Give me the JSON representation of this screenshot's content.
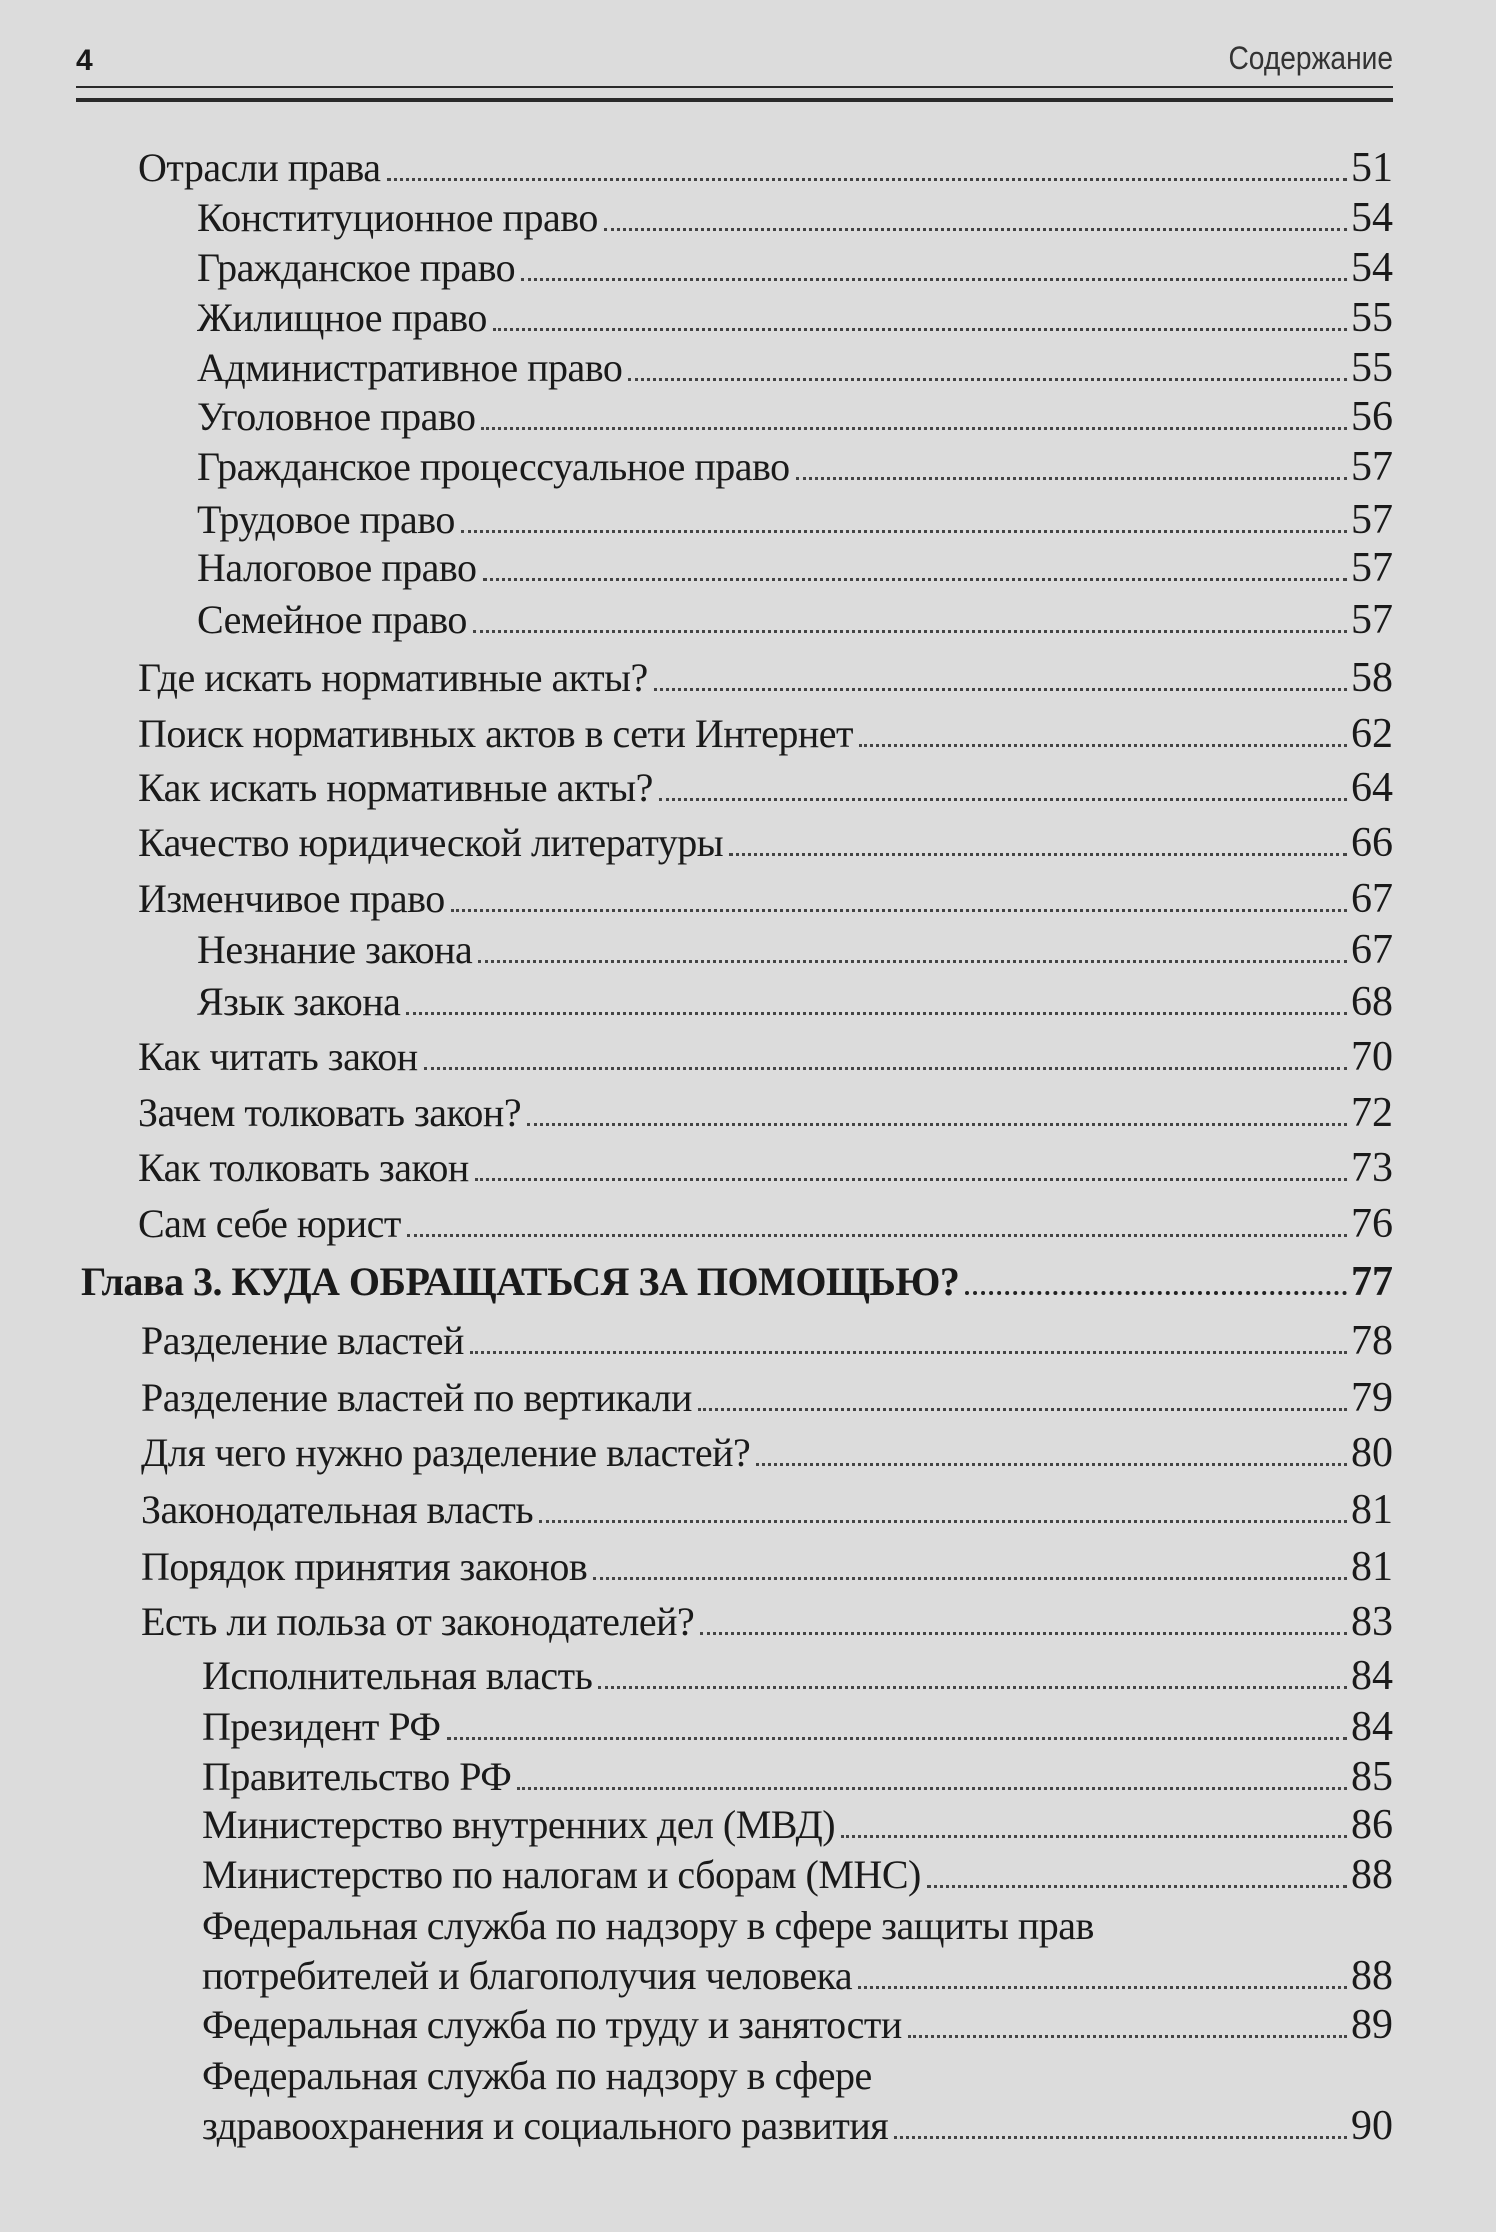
{
  "header": {
    "page_number": "4",
    "section_title": "Содержание"
  },
  "entries": [
    {
      "level": "main",
      "label": "Отрасли права",
      "page": "51"
    },
    {
      "level": "sub",
      "label": "Конституционное право",
      "page": "54"
    },
    {
      "level": "sub",
      "label": "Гражданское право",
      "page": "54"
    },
    {
      "level": "sub",
      "label": "Жилищное право",
      "page": "55"
    },
    {
      "level": "sub",
      "label": "Административное право",
      "page": "55"
    },
    {
      "level": "sub",
      "label": "Уголовное право",
      "page": "56"
    },
    {
      "level": "sub",
      "label": "Гражданское процессуальное право",
      "page": "57"
    },
    {
      "level": "sub",
      "label": "Трудовое право",
      "page": "57"
    },
    {
      "level": "sub",
      "label": "Налоговое право",
      "page": "57"
    },
    {
      "level": "sub",
      "label": "Семейное право",
      "page": "57"
    },
    {
      "level": "main",
      "label": "Где искать нормативные акты?",
      "page": "58"
    },
    {
      "level": "main",
      "label": "Поиск нормативных актов в сети Интернет",
      "page": "62"
    },
    {
      "level": "main",
      "label": "Как искать нормативные акты?",
      "page": "64"
    },
    {
      "level": "main",
      "label": "Качество юридической литературы",
      "page": "66"
    },
    {
      "level": "main",
      "label": "Изменчивое право",
      "page": "67"
    },
    {
      "level": "sub",
      "label": "Незнание закона",
      "page": "67"
    },
    {
      "level": "sub",
      "label": "Язык закона",
      "page": "68"
    },
    {
      "level": "main",
      "label": "Как читать закон",
      "page": "70"
    },
    {
      "level": "main",
      "label": "Зачем толковать закон?",
      "page": "72"
    },
    {
      "level": "main",
      "label": "Как толковать закон",
      "page": "73"
    },
    {
      "level": "main",
      "label": "Сам себе юрист",
      "page": "76"
    },
    {
      "level": "chapter",
      "label": "Глава 3.  КУДА ОБРАЩАТЬСЯ ЗА ПОМОЩЬЮ?",
      "page": "77"
    },
    {
      "level": "main",
      "label": "Разделение властей",
      "page": "78"
    },
    {
      "level": "main",
      "label": "Разделение властей по вертикали",
      "page": "79"
    },
    {
      "level": "main",
      "label": "Для чего нужно разделение властей?",
      "page": "80"
    },
    {
      "level": "main",
      "label": "Законодательная власть",
      "page": "81"
    },
    {
      "level": "main",
      "label": "Порядок принятия законов",
      "page": "81"
    },
    {
      "level": "main",
      "label": "Есть ли польза от законодателей?",
      "page": "83"
    },
    {
      "level": "sub",
      "label": "Исполнительная власть",
      "page": "84"
    },
    {
      "level": "sub",
      "label": "Президент РФ",
      "page": "84"
    },
    {
      "level": "sub",
      "label": "Правительство РФ",
      "page": "85"
    },
    {
      "level": "sub",
      "label": "Министерство внутренних дел (МВД)",
      "page": "86"
    },
    {
      "level": "sub",
      "label": "Министерство по налогам и сборам (МНС)",
      "page": "88"
    },
    {
      "level": "sub",
      "label": "Федеральная служба по надзору в сфере защиты прав",
      "page": ""
    },
    {
      "level": "sub",
      "label": "потребителей и благополучия человека",
      "page": "88"
    },
    {
      "level": "sub",
      "label": "Федеральная служба по труду и занятости",
      "page": "89"
    },
    {
      "level": "sub",
      "label": "Федеральная служба по надзору в сфере",
      "page": ""
    },
    {
      "level": "sub",
      "label": "здравоохранения и социального развития",
      "page": "90"
    }
  ]
}
